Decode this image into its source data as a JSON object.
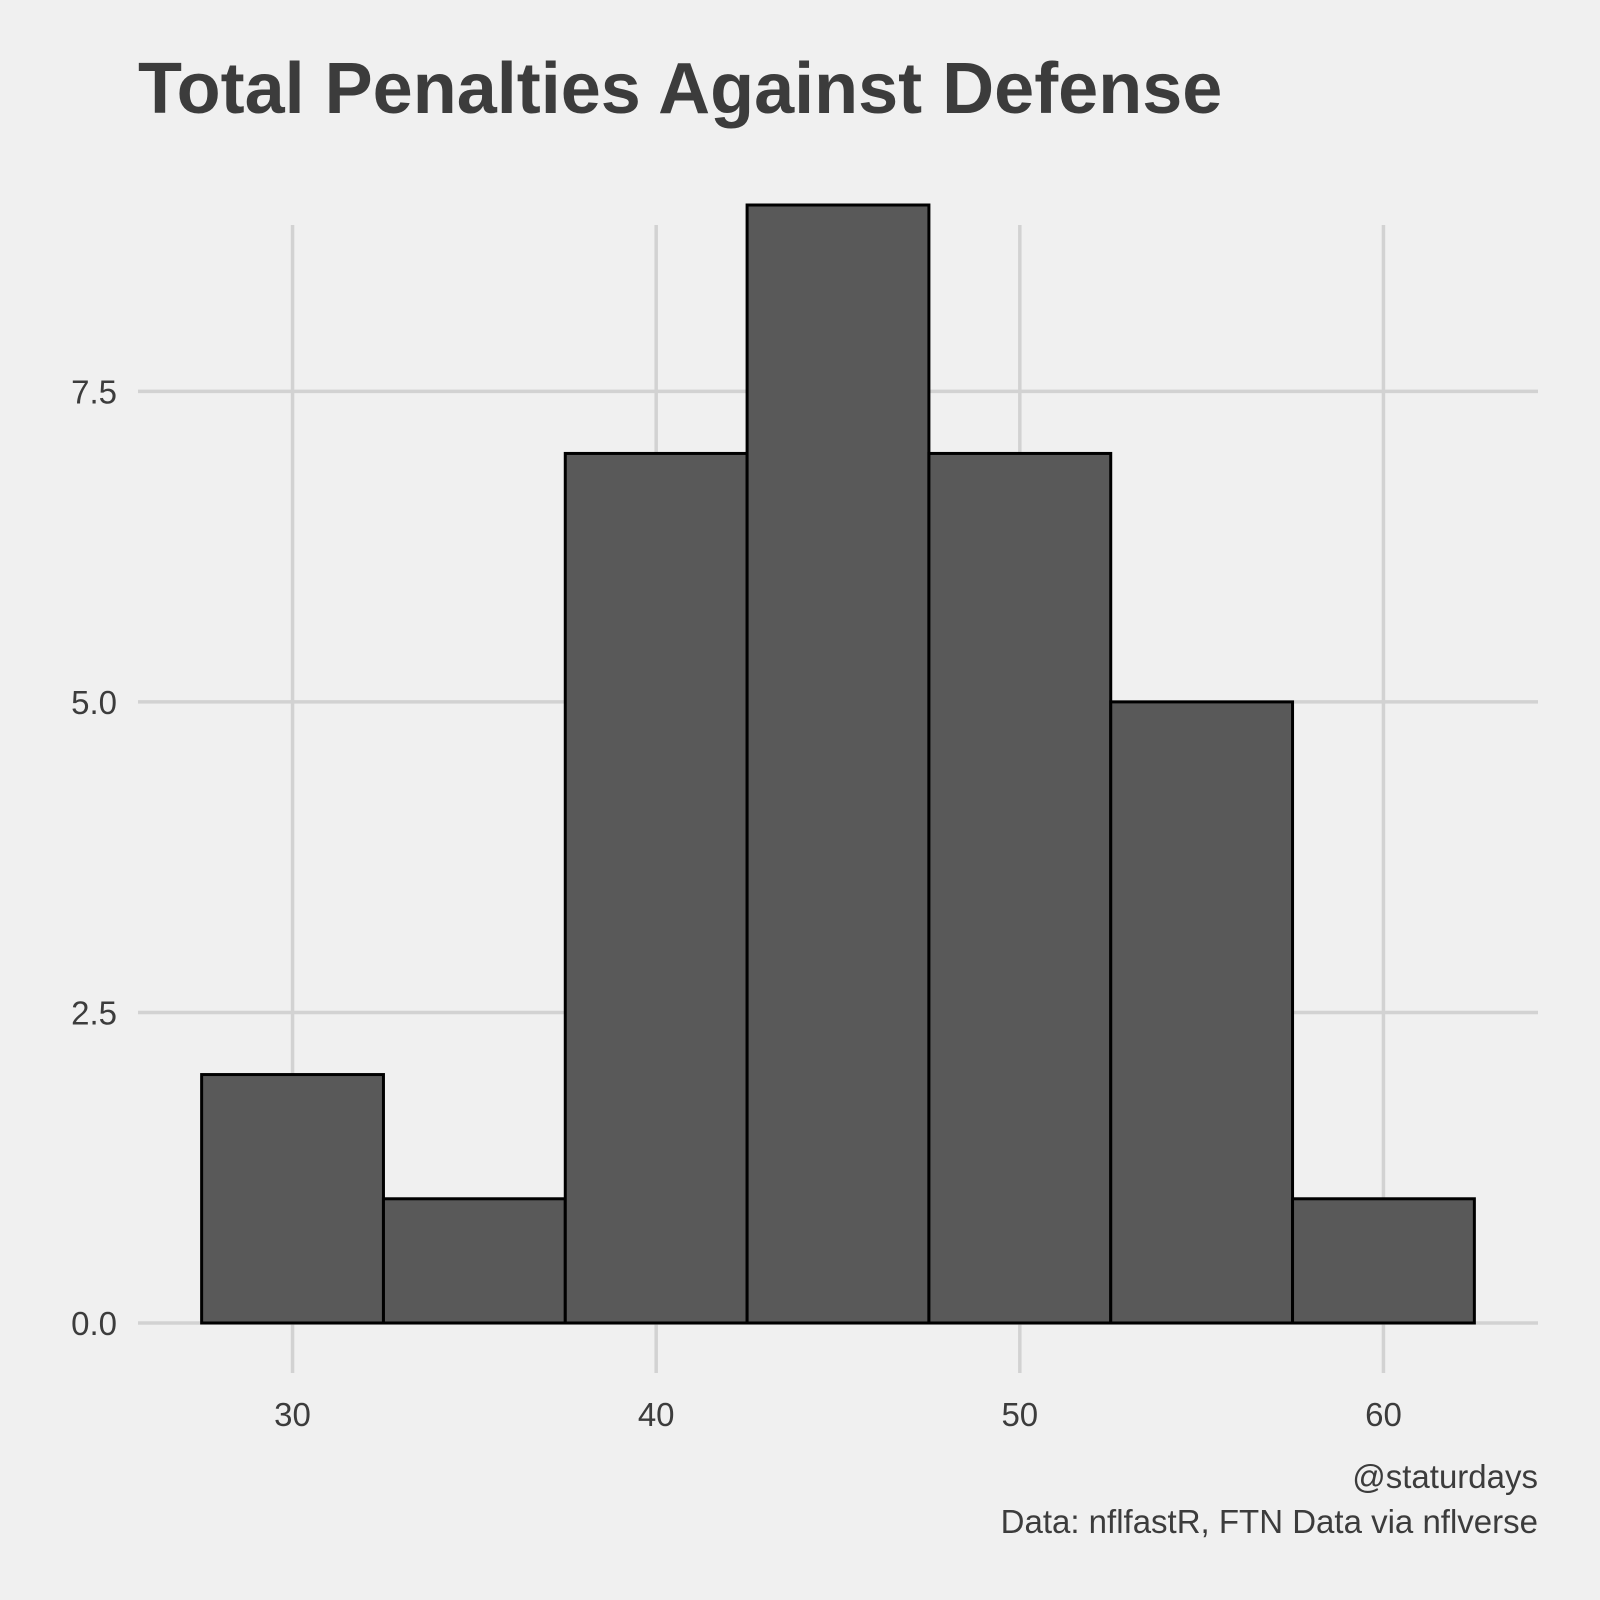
{
  "chart_data": {
    "type": "bar",
    "title": "Total Penalties Against Defense",
    "xlabel": "",
    "ylabel": "",
    "bins": [
      {
        "x0": 27.5,
        "x1": 32.5,
        "count": 2
      },
      {
        "x0": 32.5,
        "x1": 37.5,
        "count": 1
      },
      {
        "x0": 37.5,
        "x1": 42.5,
        "count": 7
      },
      {
        "x0": 42.5,
        "x1": 47.5,
        "count": 9
      },
      {
        "x0": 47.5,
        "x1": 52.5,
        "count": 7
      },
      {
        "x0": 52.5,
        "x1": 57.5,
        "count": 5
      },
      {
        "x0": 57.5,
        "x1": 62.5,
        "count": 1
      }
    ],
    "x_ticks": [
      30,
      40,
      50,
      60
    ],
    "x_tick_labels": [
      "30",
      "40",
      "50",
      "60"
    ],
    "y_ticks": [
      0,
      2.5,
      5,
      7.5
    ],
    "y_tick_labels": [
      "0.0",
      "2.5",
      "5.0",
      "7.5"
    ],
    "xlim": [
      25.75,
      64.25
    ],
    "ylim": [
      0,
      9
    ],
    "grid": true,
    "legend": "none",
    "bar_fill": "#595959",
    "bar_outline": "#000000",
    "background": "#f0f0f0",
    "grid_color": "#d2d2d2",
    "text_color": "#3c3c3c"
  },
  "caption": {
    "line1": "@staturdays",
    "line2": "Data: nflfastR, FTN Data via nflverse"
  }
}
